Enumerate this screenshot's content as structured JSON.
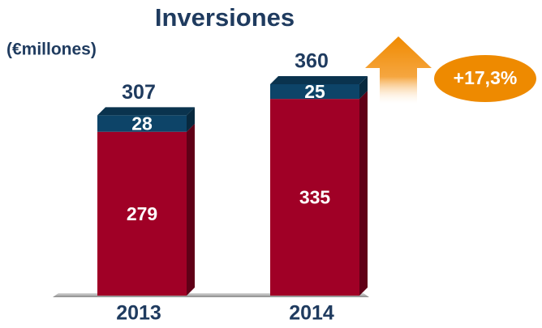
{
  "chart_data": {
    "type": "stacked_bar",
    "title": "Inversiones",
    "subtitle": "(€millones)",
    "categories": [
      "2013",
      "2014"
    ],
    "series": [
      {
        "color": "#a00026",
        "values": [
          279,
          335
        ]
      },
      {
        "color": "#0d4468",
        "values": [
          28,
          25
        ]
      }
    ],
    "totals": [
      307,
      360
    ],
    "annotation": "+17,3%",
    "ylim": [
      0,
      400
    ]
  }
}
